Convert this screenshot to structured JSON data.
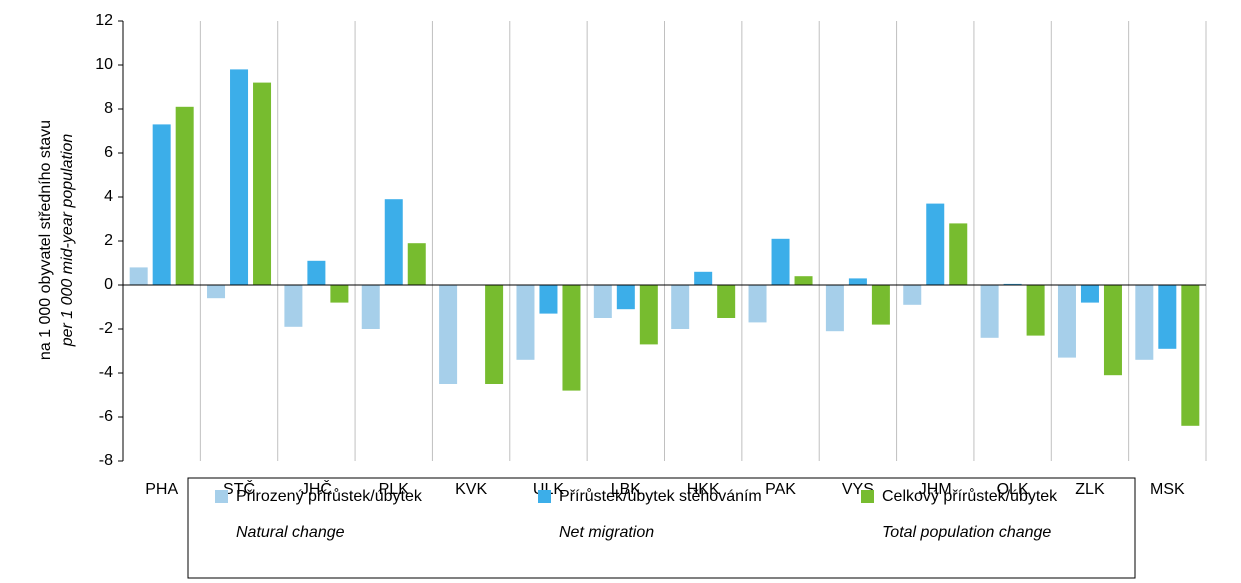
{
  "chart_data": {
    "type": "bar",
    "y_label": "na 1 000 obyvatel středního stavu",
    "y_label_en": "per 1 000 mid-year population",
    "categories": [
      "PHA",
      "STČ",
      "JHČ",
      "PLK",
      "KVK",
      "ULK",
      "LBK",
      "HKK",
      "PAK",
      "VYS",
      "JHM",
      "OLK",
      "ZLK",
      "MSK"
    ],
    "series": [
      {
        "name": "Přirozený přírůstek/úbytek",
        "name_en": "Natural change",
        "color": "#a6cfea",
        "values": [
          0.8,
          -0.6,
          -1.9,
          -2.0,
          -4.5,
          -3.4,
          -1.5,
          -2.0,
          -1.7,
          -2.1,
          -0.9,
          -2.4,
          -3.3,
          -3.4
        ]
      },
      {
        "name": "Přírůstek/úbytek stěhováním",
        "name_en": "Net migration",
        "color": "#3caee9",
        "values": [
          7.3,
          9.8,
          1.1,
          3.9,
          0.0,
          -1.3,
          -1.1,
          0.6,
          2.1,
          0.3,
          3.7,
          0.05,
          -0.8,
          -2.9
        ]
      },
      {
        "name": "Celkový přírůstek/úbytek",
        "name_en": "Total population change",
        "color": "#77bc2f",
        "values": [
          8.1,
          9.2,
          -0.8,
          1.9,
          -4.5,
          -4.8,
          -2.7,
          -1.5,
          0.4,
          -1.8,
          2.8,
          -2.3,
          -4.1,
          -6.4
        ]
      }
    ],
    "ylim": [
      -8,
      12
    ],
    "yticks": [
      -8,
      -6,
      -4,
      -2,
      0,
      2,
      4,
      6,
      8,
      10,
      12
    ],
    "grid": true
  }
}
